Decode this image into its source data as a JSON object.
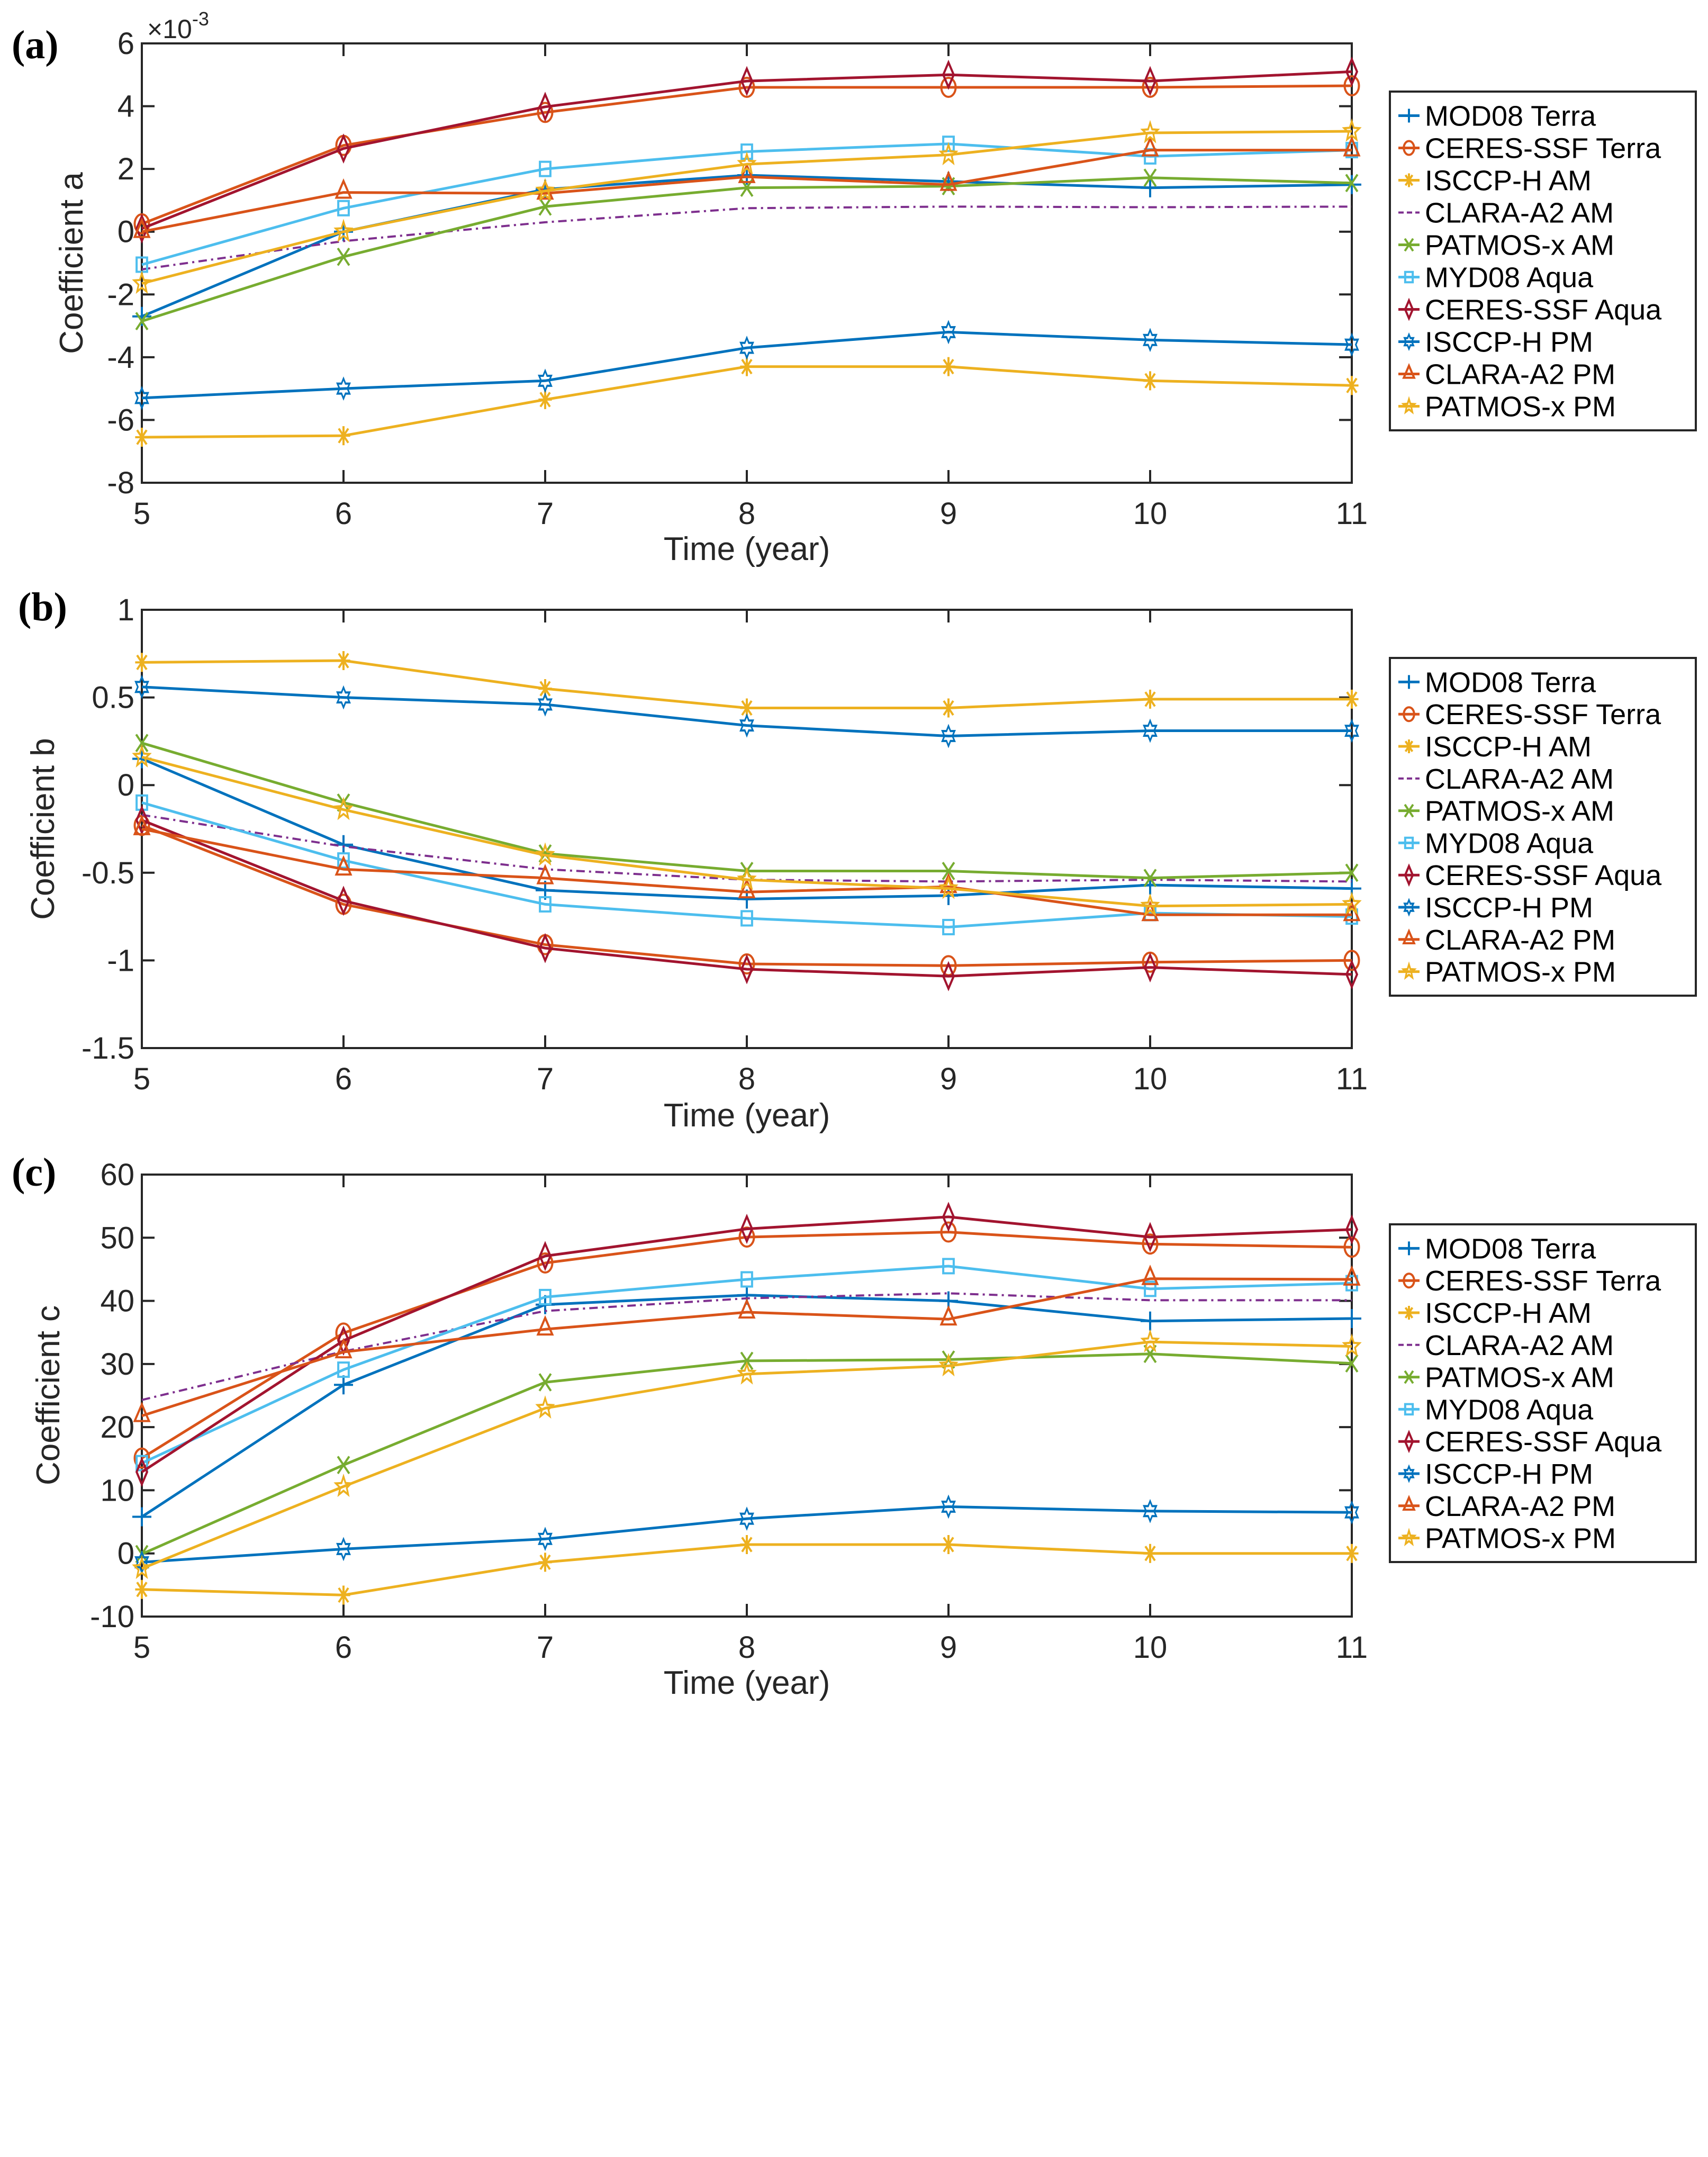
{
  "figure": {
    "panels": [
      "(a)",
      "(b)",
      "(c)"
    ]
  },
  "series_styles": [
    {
      "name": "MOD08 Terra",
      "color": "#0072BD",
      "marker": "plus",
      "dash": false
    },
    {
      "name": "CERES-SSF Terra",
      "color": "#D95319",
      "marker": "circle",
      "dash": false
    },
    {
      "name": "ISCCP-H AM",
      "color": "#EDB120",
      "marker": "asterisk",
      "dash": false
    },
    {
      "name": "CLARA-A2 AM",
      "color": "#7E2F8E",
      "marker": "none",
      "dash": true
    },
    {
      "name": "PATMOS-x AM",
      "color": "#77AC30",
      "marker": "x",
      "dash": false
    },
    {
      "name": "MYD08 Aqua",
      "color": "#4DBEEE",
      "marker": "square",
      "dash": false
    },
    {
      "name": "CERES-SSF Aqua",
      "color": "#A2142F",
      "marker": "diamond",
      "dash": false
    },
    {
      "name": "ISCCP-H PM",
      "color": "#0072BD",
      "marker": "hexagram",
      "dash": false
    },
    {
      "name": "CLARA-A2 PM",
      "color": "#D95319",
      "marker": "triangle",
      "dash": false
    },
    {
      "name": "PATMOS-x PM",
      "color": "#EDB120",
      "marker": "pentagram",
      "dash": false
    }
  ],
  "chart_data": [
    {
      "type": "line",
      "panel_label": "(a)",
      "title": "",
      "xlabel": "Time (year)",
      "ylabel": "Coefficient a",
      "y_exponent_label": "×10",
      "y_exponent": "-3",
      "x": [
        5,
        6,
        7,
        8,
        9,
        10,
        11
      ],
      "xlim": [
        5,
        11
      ],
      "ylim": [
        -8,
        6
      ],
      "xticks": [
        "5",
        "6",
        "7",
        "8",
        "9",
        "10",
        "11"
      ],
      "yticks": [
        -8,
        -6,
        -4,
        -2,
        0,
        2,
        4,
        6
      ],
      "yticklabels": [
        "-8",
        "-6",
        "-4",
        "-2",
        "0",
        "2",
        "4",
        "6"
      ],
      "grid": false,
      "legend_position": "outside-right",
      "units_note": "values in units of 1e-3",
      "series": [
        {
          "name": "MOD08 Terra",
          "values": [
            -2.7,
            0.0,
            1.35,
            1.8,
            1.6,
            1.4,
            1.5
          ]
        },
        {
          "name": "CERES-SSF Terra",
          "values": [
            0.25,
            2.75,
            3.8,
            4.6,
            4.6,
            4.6,
            4.65
          ]
        },
        {
          "name": "ISCCP-H AM",
          "values": [
            -6.55,
            -6.5,
            -5.35,
            -4.3,
            -4.3,
            -4.75,
            -4.9
          ]
        },
        {
          "name": "CLARA-A2 AM",
          "values": [
            -1.2,
            -0.3,
            0.3,
            0.75,
            0.8,
            0.78,
            0.8
          ]
        },
        {
          "name": "PATMOS-x AM",
          "values": [
            -2.85,
            -0.8,
            0.8,
            1.4,
            1.45,
            1.72,
            1.55
          ]
        },
        {
          "name": "MYD08 Aqua",
          "values": [
            -1.05,
            0.75,
            2.0,
            2.55,
            2.8,
            2.4,
            2.6
          ]
        },
        {
          "name": "CERES-SSF Aqua",
          "values": [
            0.1,
            2.65,
            3.98,
            4.8,
            5.0,
            4.8,
            5.1
          ]
        },
        {
          "name": "ISCCP-H PM",
          "values": [
            -5.3,
            -5.0,
            -4.75,
            -3.7,
            -3.2,
            -3.45,
            -3.6
          ]
        },
        {
          "name": "CLARA-A2 PM",
          "values": [
            0.0,
            1.25,
            1.22,
            1.75,
            1.5,
            2.6,
            2.6
          ]
        },
        {
          "name": "PATMOS-x PM",
          "values": [
            -1.65,
            0.0,
            1.3,
            2.15,
            2.45,
            3.15,
            3.2
          ]
        }
      ]
    },
    {
      "type": "line",
      "panel_label": "(b)",
      "title": "",
      "xlabel": "Time (year)",
      "ylabel": "Coefficient b",
      "x": [
        5,
        6,
        7,
        8,
        9,
        10,
        11
      ],
      "xlim": [
        5,
        11
      ],
      "ylim": [
        -1.5,
        1
      ],
      "xticks": [
        "5",
        "6",
        "7",
        "8",
        "9",
        "10",
        "11"
      ],
      "yticks": [
        -1.5,
        -1,
        -0.5,
        0,
        0.5,
        1
      ],
      "yticklabels": [
        "-1.5",
        "-1",
        "-0.5",
        "0",
        "0.5",
        "1"
      ],
      "grid": false,
      "legend_position": "outside-right",
      "series": [
        {
          "name": "MOD08 Terra",
          "values": [
            0.15,
            -0.34,
            -0.6,
            -0.65,
            -0.63,
            -0.57,
            -0.59
          ]
        },
        {
          "name": "CERES-SSF Terra",
          "values": [
            -0.23,
            -0.68,
            -0.91,
            -1.02,
            -1.03,
            -1.01,
            -1.0
          ]
        },
        {
          "name": "ISCCP-H AM",
          "values": [
            0.7,
            0.71,
            0.55,
            0.44,
            0.44,
            0.49,
            0.49
          ]
        },
        {
          "name": "CLARA-A2 AM",
          "values": [
            -0.17,
            -0.35,
            -0.48,
            -0.54,
            -0.55,
            -0.54,
            -0.55
          ]
        },
        {
          "name": "PATMOS-x AM",
          "values": [
            0.24,
            -0.1,
            -0.39,
            -0.49,
            -0.49,
            -0.53,
            -0.5
          ]
        },
        {
          "name": "MYD08 Aqua",
          "values": [
            -0.1,
            -0.43,
            -0.68,
            -0.76,
            -0.81,
            -0.73,
            -0.75
          ]
        },
        {
          "name": "CERES-SSF Aqua",
          "values": [
            -0.2,
            -0.66,
            -0.93,
            -1.05,
            -1.09,
            -1.04,
            -1.08
          ]
        },
        {
          "name": "ISCCP-H PM",
          "values": [
            0.56,
            0.5,
            0.46,
            0.34,
            0.28,
            0.31,
            0.31
          ]
        },
        {
          "name": "CLARA-A2 PM",
          "values": [
            -0.25,
            -0.48,
            -0.53,
            -0.61,
            -0.58,
            -0.74,
            -0.74
          ]
        },
        {
          "name": "PATMOS-x PM",
          "values": [
            0.16,
            -0.14,
            -0.4,
            -0.54,
            -0.59,
            -0.69,
            -0.68
          ]
        }
      ]
    },
    {
      "type": "line",
      "panel_label": "(c)",
      "title": "",
      "xlabel": "Time (year)",
      "ylabel": "Coefficient c",
      "x": [
        5,
        6,
        7,
        8,
        9,
        10,
        11
      ],
      "xlim": [
        5,
        11
      ],
      "ylim": [
        -10,
        60
      ],
      "xticks": [
        "5",
        "6",
        "7",
        "8",
        "9",
        "10",
        "11"
      ],
      "yticks": [
        -10,
        0,
        10,
        20,
        30,
        40,
        50,
        60
      ],
      "yticklabels": [
        "-10",
        "0",
        "10",
        "20",
        "30",
        "40",
        "50",
        "60"
      ],
      "grid": false,
      "legend_position": "outside-right",
      "series": [
        {
          "name": "MOD08 Terra",
          "values": [
            5.8,
            26.7,
            39.4,
            40.9,
            40.0,
            36.8,
            37.2
          ]
        },
        {
          "name": "CERES-SSF Terra",
          "values": [
            15.1,
            34.9,
            46.0,
            50.1,
            50.9,
            49.0,
            48.5
          ]
        },
        {
          "name": "ISCCP-H AM",
          "values": [
            -5.7,
            -6.6,
            -1.4,
            1.4,
            1.4,
            0.0,
            0.0
          ]
        },
        {
          "name": "CLARA-A2 AM",
          "values": [
            24.3,
            32.0,
            38.4,
            40.4,
            41.2,
            40.1,
            40.1
          ]
        },
        {
          "name": "PATMOS-x AM",
          "values": [
            -0.1,
            14.0,
            27.1,
            30.5,
            30.7,
            31.6,
            30.1
          ]
        },
        {
          "name": "MYD08 Aqua",
          "values": [
            14.3,
            29.1,
            40.6,
            43.4,
            45.5,
            41.9,
            42.8
          ]
        },
        {
          "name": "CERES-SSF Aqua",
          "values": [
            12.9,
            33.7,
            47.1,
            51.4,
            53.3,
            50.1,
            51.3
          ]
        },
        {
          "name": "ISCCP-H PM",
          "values": [
            -1.4,
            0.7,
            2.3,
            5.5,
            7.4,
            6.7,
            6.5
          ]
        },
        {
          "name": "CLARA-A2 PM",
          "values": [
            21.8,
            31.9,
            35.5,
            38.2,
            37.1,
            43.5,
            43.4
          ]
        },
        {
          "name": "PATMOS-x PM",
          "values": [
            -2.4,
            10.6,
            23.0,
            28.4,
            29.7,
            33.5,
            32.8
          ]
        }
      ]
    }
  ]
}
